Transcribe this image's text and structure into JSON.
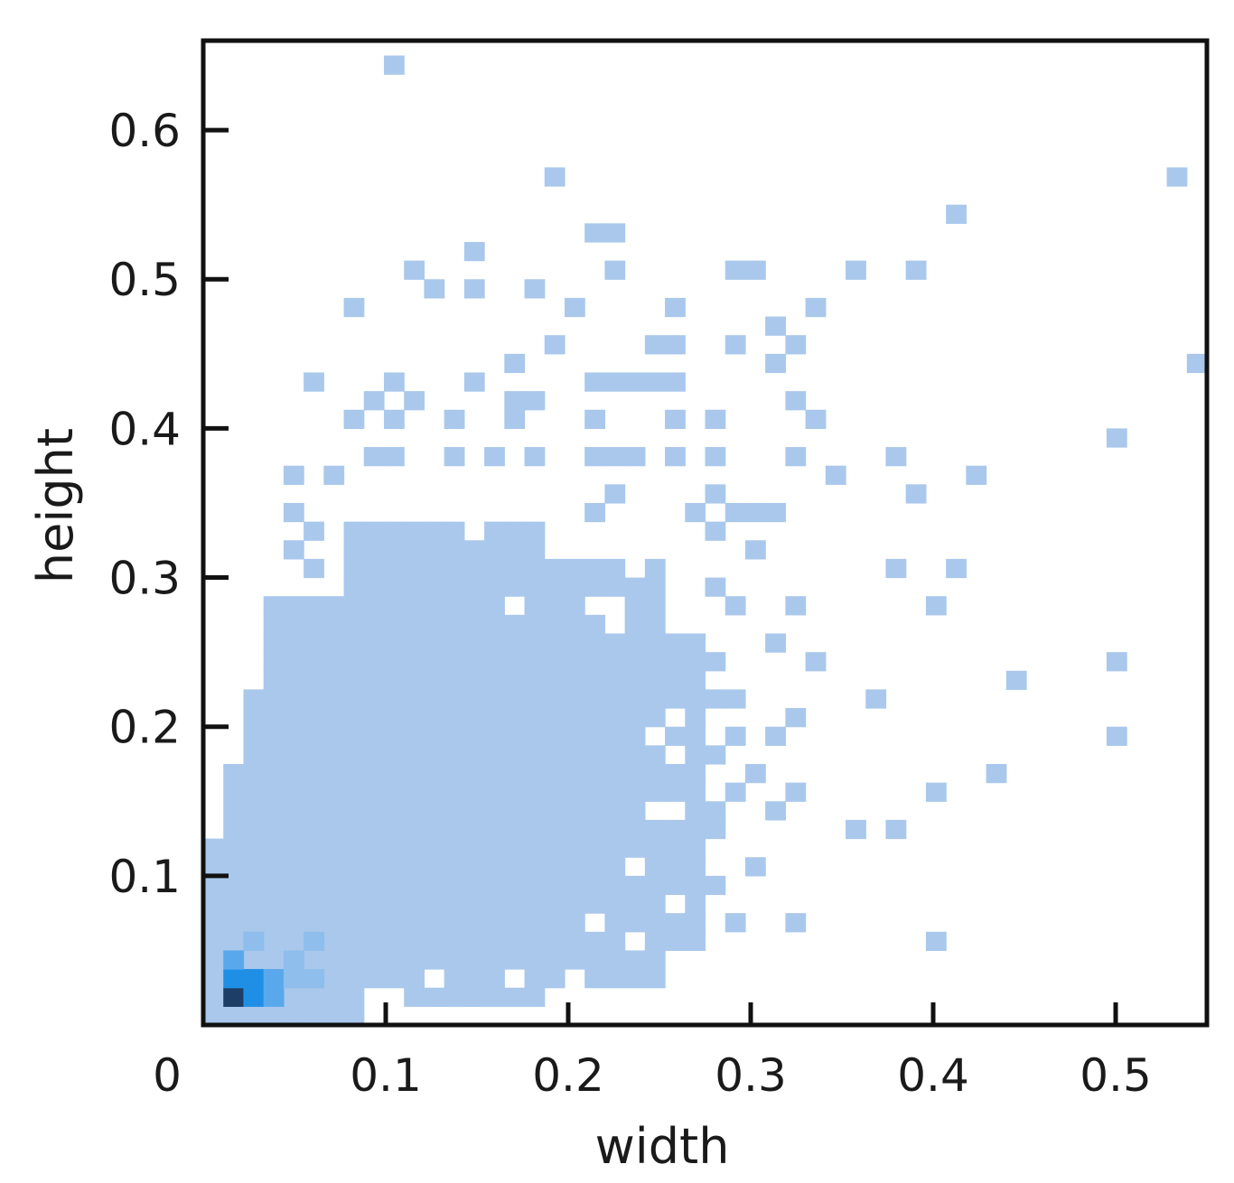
{
  "chart_data": {
    "type": "heatmap",
    "title": "",
    "xlabel": "width",
    "ylabel": "height",
    "xlim": [
      0,
      0.55
    ],
    "ylim": [
      0,
      0.66
    ],
    "x_ticks": [
      0,
      0.1,
      0.2,
      0.3,
      0.4,
      0.5
    ],
    "x_tick_labels": [
      "0",
      "0.1",
      "0.2",
      "0.3",
      "0.4",
      "0.5"
    ],
    "y_ticks": [
      0.1,
      0.2,
      0.3,
      0.4,
      0.5,
      0.6
    ],
    "y_tick_labels": [
      "0.1",
      "0.2",
      "0.3",
      "0.4",
      "0.5",
      "0.6"
    ],
    "bin_size": {
      "width": 0.011,
      "height": 0.0125
    },
    "colors": {
      "low": "#a9c8ec",
      "mid": "#5aa8ec",
      "high": "#1f8fe6",
      "peak": "#1d3f66",
      "frame": "#111111"
    },
    "dense_region": [
      {
        "x_range": [
          0.01,
          0.02
        ],
        "y_range": [
          0.0,
          0.115
        ]
      },
      {
        "x_range": [
          0.02,
          0.025
        ],
        "y_range": [
          0.0,
          0.17
        ]
      },
      {
        "x_range": [
          0.025,
          0.04
        ],
        "y_range": [
          0.0,
          0.22
        ]
      },
      {
        "x_range": [
          0.04,
          0.085
        ],
        "y_range": [
          0.0,
          0.285
        ]
      },
      {
        "x_range": [
          0.085,
          0.185
        ],
        "y_range": [
          0.015,
          0.33
        ]
      },
      {
        "x_range": [
          0.185,
          0.25
        ],
        "y_range": [
          0.03,
          0.305
        ]
      },
      {
        "x_range": [
          0.25,
          0.27
        ],
        "y_range": [
          0.06,
          0.26
        ]
      }
    ],
    "density_core": [
      {
        "x": 0.014,
        "y": 0.014,
        "level": 4
      },
      {
        "x": 0.025,
        "y": 0.014,
        "level": 3
      },
      {
        "x": 0.014,
        "y": 0.025,
        "level": 3
      },
      {
        "x": 0.025,
        "y": 0.027,
        "level": 3
      },
      {
        "x": 0.036,
        "y": 0.018,
        "level": 2
      },
      {
        "x": 0.018,
        "y": 0.039,
        "level": 2
      },
      {
        "x": 0.036,
        "y": 0.037,
        "level": 2
      },
      {
        "x": 0.047,
        "y": 0.025,
        "level": 1
      },
      {
        "x": 0.025,
        "y": 0.05,
        "level": 1
      },
      {
        "x": 0.047,
        "y": 0.045,
        "level": 1
      },
      {
        "x": 0.058,
        "y": 0.03,
        "level": 1
      },
      {
        "x": 0.03,
        "y": 0.062,
        "level": 1
      },
      {
        "x": 0.058,
        "y": 0.055,
        "level": 1
      }
    ],
    "sparse_bins": [
      [
        0.104,
        0.644
      ],
      [
        0.19,
        0.568
      ],
      [
        0.53,
        0.568
      ],
      [
        0.21,
        0.525
      ],
      [
        0.22,
        0.525
      ],
      [
        0.41,
        0.542
      ],
      [
        0.115,
        0.502
      ],
      [
        0.148,
        0.515
      ],
      [
        0.225,
        0.502
      ],
      [
        0.29,
        0.502
      ],
      [
        0.3,
        0.502
      ],
      [
        0.355,
        0.502
      ],
      [
        0.385,
        0.502
      ],
      [
        0.085,
        0.477
      ],
      [
        0.125,
        0.49
      ],
      [
        0.148,
        0.49
      ],
      [
        0.18,
        0.49
      ],
      [
        0.2,
        0.477
      ],
      [
        0.255,
        0.477
      ],
      [
        0.335,
        0.477
      ],
      [
        0.315,
        0.465
      ],
      [
        0.19,
        0.452
      ],
      [
        0.245,
        0.452
      ],
      [
        0.255,
        0.452
      ],
      [
        0.29,
        0.452
      ],
      [
        0.325,
        0.452
      ],
      [
        0.31,
        0.44
      ],
      [
        0.545,
        0.44
      ],
      [
        0.06,
        0.427
      ],
      [
        0.17,
        0.44
      ],
      [
        0.148,
        0.427
      ],
      [
        0.105,
        0.427
      ],
      [
        0.21,
        0.427
      ],
      [
        0.22,
        0.427
      ],
      [
        0.235,
        0.427
      ],
      [
        0.245,
        0.427
      ],
      [
        0.255,
        0.427
      ],
      [
        0.095,
        0.415
      ],
      [
        0.115,
        0.415
      ],
      [
        0.165,
        0.415
      ],
      [
        0.175,
        0.415
      ],
      [
        0.185,
        0.415
      ],
      [
        0.325,
        0.415
      ],
      [
        0.085,
        0.402
      ],
      [
        0.105,
        0.402
      ],
      [
        0.135,
        0.402
      ],
      [
        0.165,
        0.402
      ],
      [
        0.215,
        0.402
      ],
      [
        0.255,
        0.402
      ],
      [
        0.28,
        0.402
      ],
      [
        0.335,
        0.402
      ],
      [
        0.495,
        0.39
      ],
      [
        0.09,
        0.377
      ],
      [
        0.105,
        0.377
      ],
      [
        0.135,
        0.377
      ],
      [
        0.16,
        0.377
      ],
      [
        0.18,
        0.377
      ],
      [
        0.215,
        0.377
      ],
      [
        0.23,
        0.377
      ],
      [
        0.24,
        0.377
      ],
      [
        0.255,
        0.377
      ],
      [
        0.28,
        0.377
      ],
      [
        0.32,
        0.377
      ],
      [
        0.375,
        0.377
      ],
      [
        0.05,
        0.365
      ],
      [
        0.075,
        0.365
      ],
      [
        0.345,
        0.365
      ],
      [
        0.425,
        0.365
      ],
      [
        0.225,
        0.352
      ],
      [
        0.28,
        0.352
      ],
      [
        0.39,
        0.352
      ],
      [
        0.05,
        0.34
      ],
      [
        0.21,
        0.34
      ],
      [
        0.265,
        0.34
      ],
      [
        0.29,
        0.34
      ],
      [
        0.3,
        0.34
      ],
      [
        0.31,
        0.34
      ],
      [
        0.055,
        0.327
      ],
      [
        0.275,
        0.327
      ],
      [
        0.05,
        0.315
      ],
      [
        0.3,
        0.315
      ],
      [
        0.06,
        0.302
      ],
      [
        0.375,
        0.302
      ],
      [
        0.41,
        0.302
      ],
      [
        0.285,
        0.29
      ],
      [
        0.295,
        0.278
      ],
      [
        0.32,
        0.278
      ],
      [
        0.4,
        0.278
      ],
      [
        0.31,
        0.253
      ],
      [
        0.285,
        0.24
      ],
      [
        0.33,
        0.24
      ],
      [
        0.495,
        0.24
      ],
      [
        0.44,
        0.228
      ],
      [
        0.365,
        0.215
      ],
      [
        0.28,
        0.215
      ],
      [
        0.295,
        0.215
      ],
      [
        0.32,
        0.203
      ],
      [
        0.27,
        0.203
      ],
      [
        0.29,
        0.19
      ],
      [
        0.31,
        0.19
      ],
      [
        0.275,
        0.178
      ],
      [
        0.305,
        0.165
      ],
      [
        0.495,
        0.19
      ],
      [
        0.43,
        0.165
      ],
      [
        0.29,
        0.153
      ],
      [
        0.325,
        0.153
      ],
      [
        0.4,
        0.153
      ],
      [
        0.28,
        0.14
      ],
      [
        0.31,
        0.14
      ],
      [
        0.355,
        0.127
      ],
      [
        0.375,
        0.127
      ],
      [
        0.275,
        0.127
      ],
      [
        0.3,
        0.1
      ],
      [
        0.285,
        0.09
      ],
      [
        0.265,
        0.09
      ],
      [
        0.32,
        0.075
      ],
      [
        0.295,
        0.075
      ],
      [
        0.4,
        0.05
      ]
    ],
    "holes": [
      [
        0.105,
        0.365
      ],
      [
        0.12,
        0.365
      ],
      [
        0.14,
        0.352
      ],
      [
        0.155,
        0.34
      ],
      [
        0.17,
        0.34
      ],
      [
        0.15,
        0.327
      ],
      [
        0.19,
        0.327
      ],
      [
        0.215,
        0.327
      ],
      [
        0.2,
        0.315
      ],
      [
        0.24,
        0.302
      ],
      [
        0.26,
        0.28
      ],
      [
        0.165,
        0.28
      ],
      [
        0.175,
        0.28
      ],
      [
        0.215,
        0.28
      ],
      [
        0.23,
        0.28
      ],
      [
        0.22,
        0.265
      ],
      [
        0.255,
        0.2
      ],
      [
        0.245,
        0.19
      ],
      [
        0.255,
        0.18
      ],
      [
        0.26,
        0.14
      ],
      [
        0.245,
        0.14
      ],
      [
        0.24,
        0.1
      ],
      [
        0.255,
        0.085
      ],
      [
        0.21,
        0.075
      ],
      [
        0.24,
        0.06
      ],
      [
        0.125,
        0.025
      ],
      [
        0.17,
        0.025
      ],
      [
        0.205,
        0.025
      ],
      [
        0.09,
        0.015
      ],
      [
        0.105,
        0.015
      ]
    ]
  }
}
